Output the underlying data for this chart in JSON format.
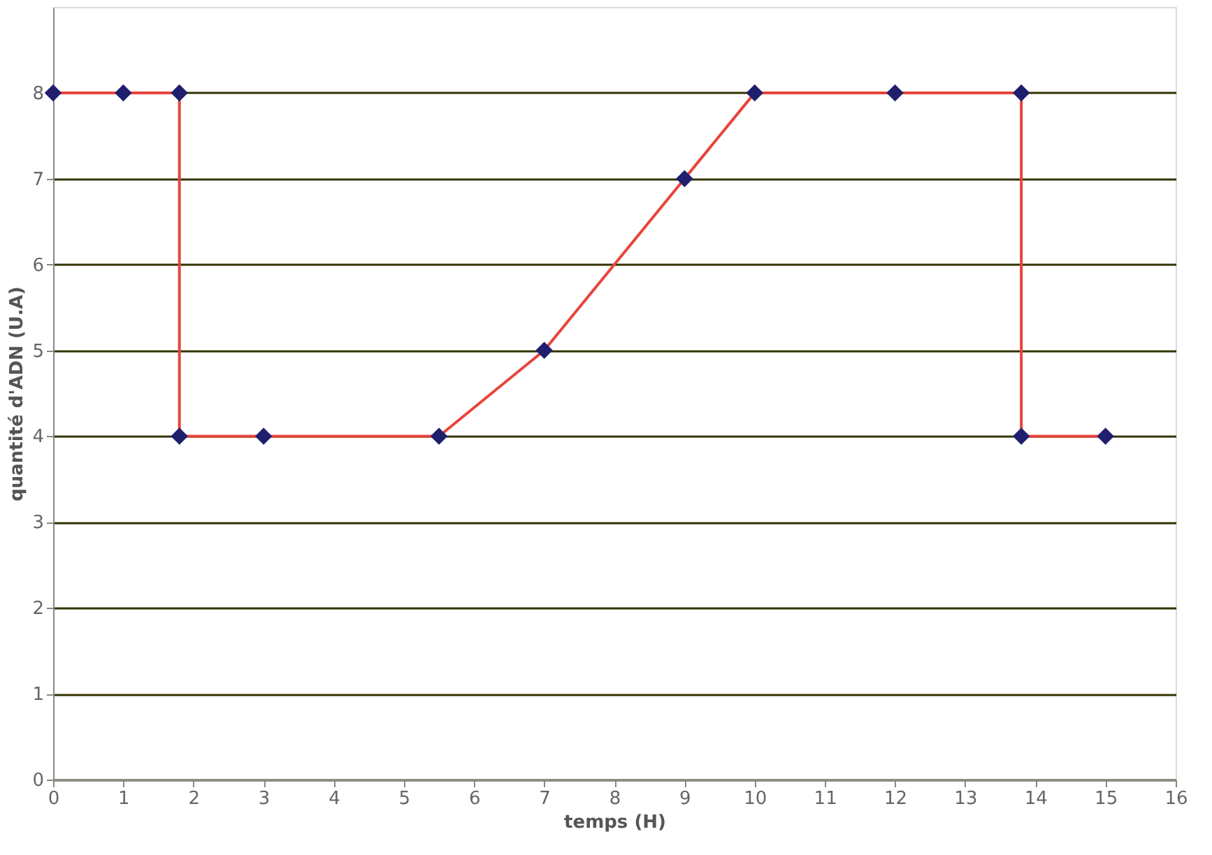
{
  "chart_data": {
    "type": "line",
    "xlabel": "temps (H)",
    "ylabel": "quantité d'ADN (U.A)",
    "x": [
      0,
      1,
      1.8,
      1.8,
      3,
      5.5,
      7,
      9,
      10,
      12,
      13.8,
      13.8,
      15
    ],
    "series": [
      {
        "color": "#e8443a",
        "values": [
          8,
          8,
          8,
          4,
          4,
          4,
          5,
          7,
          8,
          8,
          8,
          4,
          4
        ]
      }
    ],
    "xlim": [
      0,
      16
    ],
    "xticks": [
      0,
      1,
      2,
      3,
      4,
      5,
      6,
      7,
      8,
      9,
      10,
      11,
      12,
      13,
      14,
      15,
      16
    ],
    "ylim": [
      0,
      9
    ],
    "yticks": [
      0,
      1,
      2,
      3,
      4,
      5,
      6,
      7,
      8
    ],
    "grid": "y",
    "marker": "diamond",
    "line_style": "solid"
  }
}
